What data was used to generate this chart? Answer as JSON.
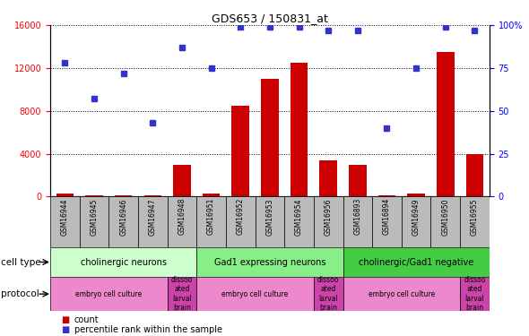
{
  "title": "GDS653 / 150831_at",
  "samples": [
    "GSM16944",
    "GSM16945",
    "GSM16946",
    "GSM16947",
    "GSM16948",
    "GSM16951",
    "GSM16952",
    "GSM16953",
    "GSM16954",
    "GSM16956",
    "GSM16893",
    "GSM16894",
    "GSM16949",
    "GSM16950",
    "GSM16955"
  ],
  "counts": [
    280,
    80,
    150,
    150,
    3000,
    280,
    8500,
    11000,
    12500,
    3400,
    3000,
    80,
    280,
    13500,
    4000
  ],
  "percentiles": [
    78,
    57,
    72,
    43,
    87,
    75,
    99,
    99,
    99,
    97,
    97,
    40,
    75,
    99,
    97
  ],
  "ylim_left": [
    0,
    16000
  ],
  "ylim_right": [
    0,
    100
  ],
  "yticks_left": [
    0,
    4000,
    8000,
    12000,
    16000
  ],
  "yticks_right": [
    0,
    25,
    50,
    75,
    100
  ],
  "bar_color": "#cc0000",
  "dot_color": "#3333cc",
  "cell_type_groups": [
    {
      "label": "cholinergic neurons",
      "start": 0,
      "end": 5,
      "color": "#ccffcc"
    },
    {
      "label": "Gad1 expressing neurons",
      "start": 5,
      "end": 10,
      "color": "#88ee88"
    },
    {
      "label": "cholinergic/Gad1 negative",
      "start": 10,
      "end": 15,
      "color": "#44cc44"
    }
  ],
  "protocol_groups": [
    {
      "label": "embryo cell culture",
      "start": 0,
      "end": 4,
      "color": "#ee88cc"
    },
    {
      "label": "dissoo\nated\nlarval\nbrain",
      "start": 4,
      "end": 5,
      "color": "#cc44aa"
    },
    {
      "label": "embryo cell culture",
      "start": 5,
      "end": 9,
      "color": "#ee88cc"
    },
    {
      "label": "dissoo\nated\nlarval\nbrain",
      "start": 9,
      "end": 10,
      "color": "#cc44aa"
    },
    {
      "label": "embryo cell culture",
      "start": 10,
      "end": 14,
      "color": "#ee88cc"
    },
    {
      "label": "dissoo\nated\nlarval\nbrain",
      "start": 14,
      "end": 15,
      "color": "#cc44aa"
    }
  ],
  "cell_type_label": "cell type",
  "protocol_label": "protocol",
  "legend_count_label": "count",
  "legend_pct_label": "percentile rank within the sample",
  "xtick_bg": "#bbbbbb"
}
